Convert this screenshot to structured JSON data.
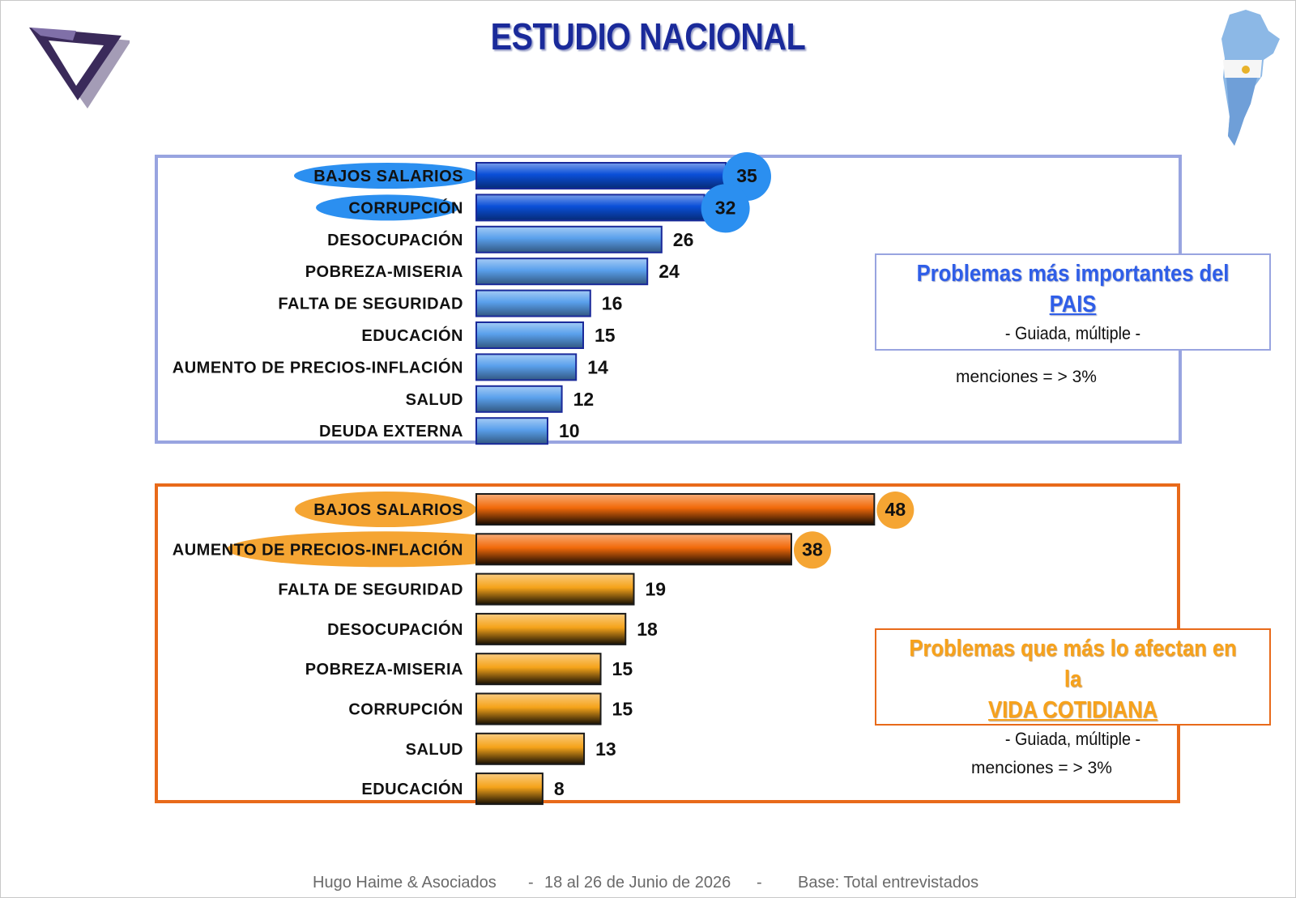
{
  "title": "ESTUDIO NACIONAL",
  "chart_data": [
    {
      "type": "bar",
      "orientation": "horizontal",
      "categories": [
        "BAJOS SALARIOS",
        "CORRUPCIÓN",
        "DESOCUPACIÓN",
        "POBREZA-MISERIA",
        "FALTA DE SEGURIDAD",
        "EDUCACIÓN",
        "AUMENTO DE PRECIOS-INFLACIÓN",
        "SALUD",
        "DEUDA EXTERNA"
      ],
      "values": [
        35,
        32,
        26,
        24,
        16,
        15,
        14,
        12,
        10
      ],
      "highlighted": [
        "BAJOS SALARIOS",
        "CORRUPCIÓN"
      ],
      "title": "Problemas más importantes del",
      "title_emphasis": "PAIS",
      "subtitle": "- Guiada, múltiple -",
      "note": "menciones = > 3%",
      "color": "#5aa0ec",
      "highlight_color": "#0a4fd8",
      "label_bubble_color": "#2b8ff0",
      "xlim": [
        0,
        55
      ]
    },
    {
      "type": "bar",
      "orientation": "horizontal",
      "categories": [
        "BAJOS SALARIOS",
        "AUMENTO DE PRECIOS-INFLACIÓN",
        "FALTA DE SEGURIDAD",
        "DESOCUPACIÓN",
        "POBREZA-MISERIA",
        "CORRUPCIÓN",
        "SALUD",
        "EDUCACIÓN"
      ],
      "values": [
        48,
        38,
        19,
        18,
        15,
        15,
        13,
        8
      ],
      "highlighted": [
        "BAJOS SALARIOS",
        "AUMENTO DE PRECIOS-INFLACIÓN"
      ],
      "title": "Problemas que más lo afectan en la",
      "title_emphasis": "VIDA COTIDIANA",
      "subtitle": "- Guiada, múltiple -",
      "note": "menciones = > 3%",
      "color": "#f5a31a",
      "highlight_color": "#f26a0a",
      "label_bubble_color": "#f5a533",
      "xlim": [
        0,
        55
      ]
    }
  ],
  "footer": {
    "company": "Hugo Haime & Asociados",
    "sep1": "-",
    "dates": "18 al 26 de Junio de 2026",
    "sep2": "-",
    "base": "Base: Total entrevistados"
  }
}
